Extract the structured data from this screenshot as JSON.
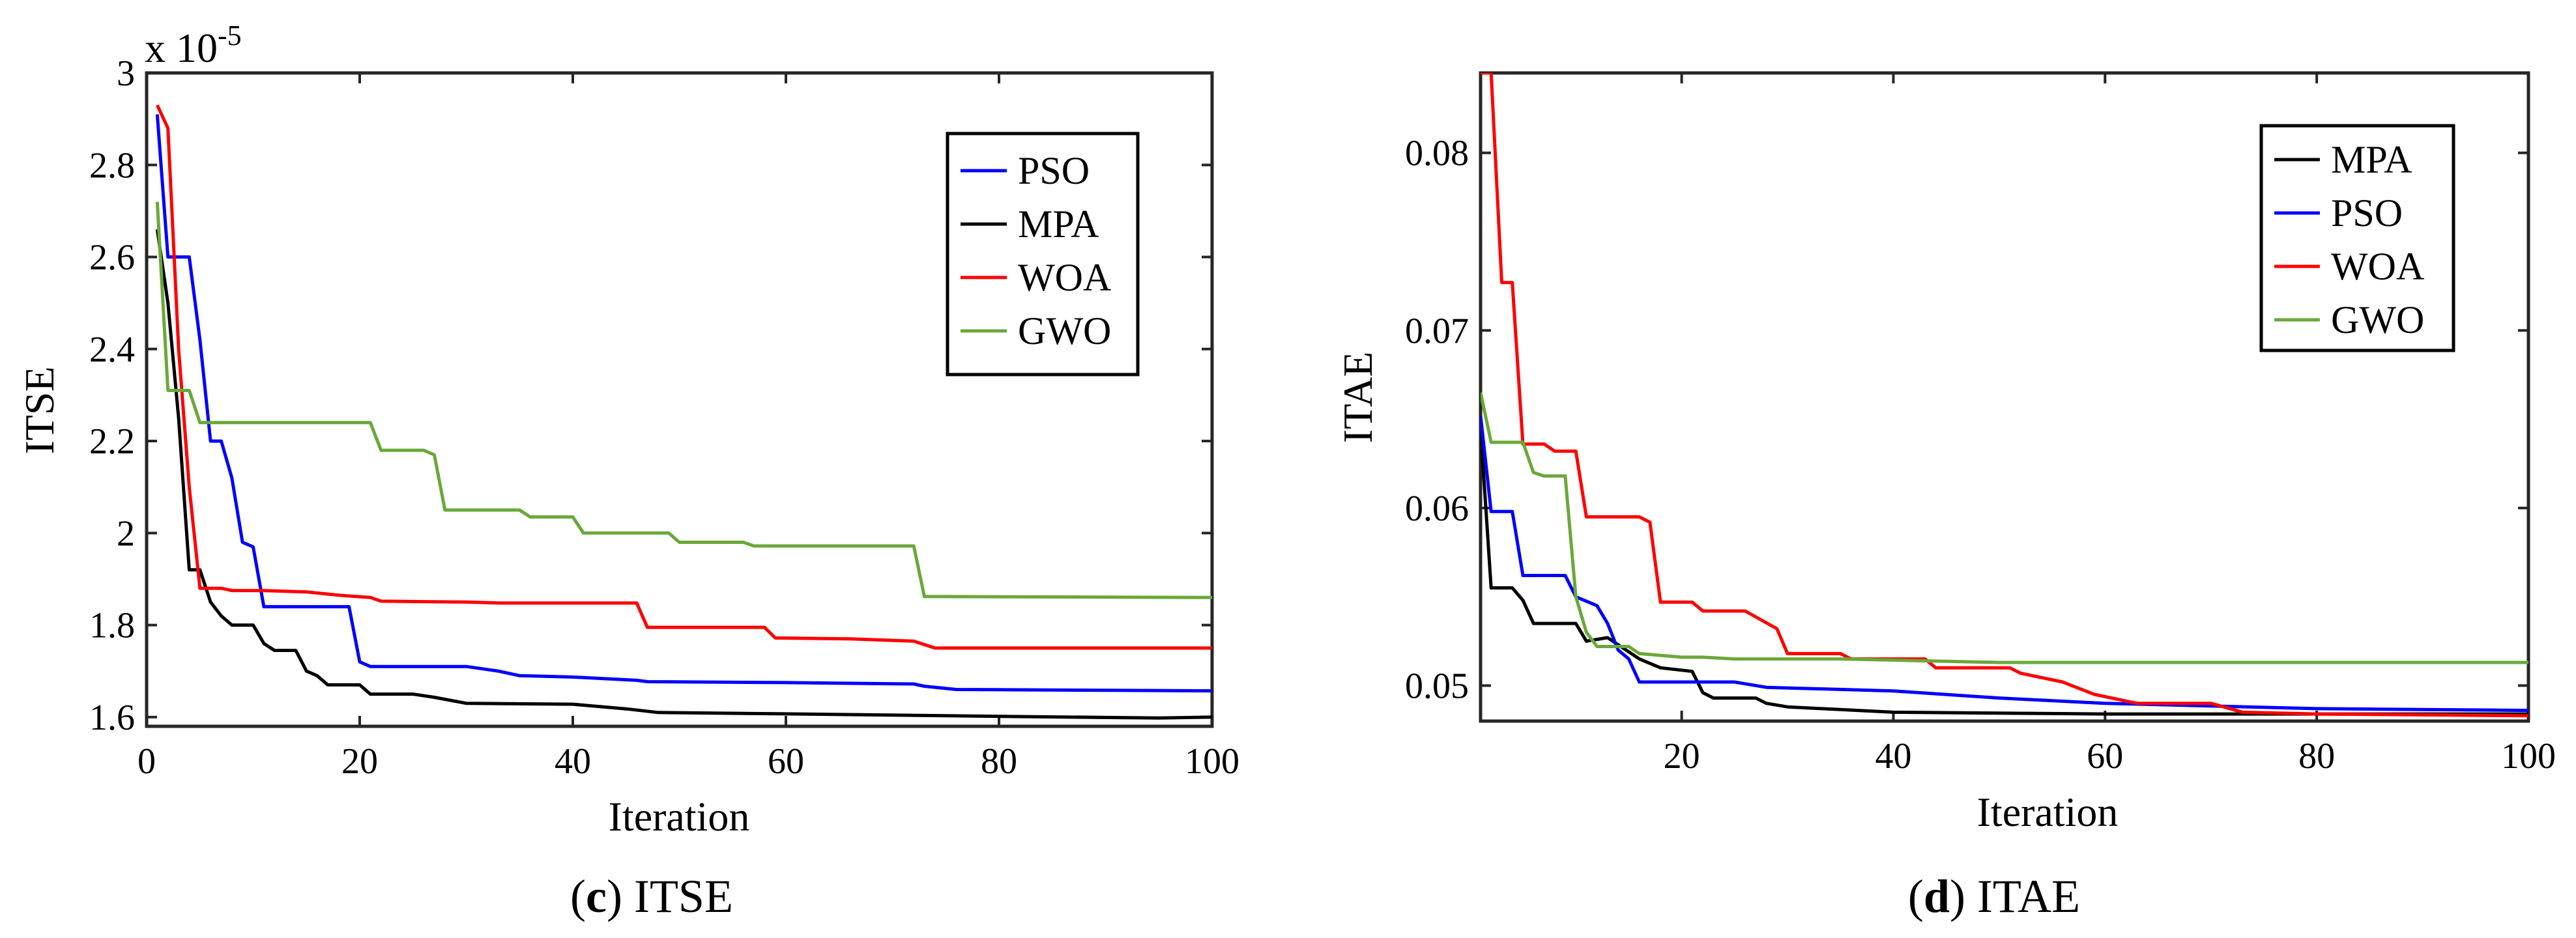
{
  "chart_data": [
    {
      "type": "line",
      "panel": "c",
      "caption_letter": "c",
      "caption_text": " ITSE",
      "xlabel": "Iteration",
      "ylabel": "ITSE",
      "exponent_label": "x 10",
      "exponent_power": "-5",
      "xlim": [
        0,
        100
      ],
      "ylim": [
        1.58,
        3.0
      ],
      "xticks": [
        0,
        20,
        40,
        60,
        80,
        100
      ],
      "xtick_labels": [
        "0",
        "20",
        "40",
        "60",
        "80",
        "100"
      ],
      "yticks": [
        1.6,
        1.8,
        2.0,
        2.2,
        2.4,
        2.6,
        2.8,
        3.0
      ],
      "ytick_labels": [
        "1.6",
        "1.8",
        "2",
        "2.2",
        "2.4",
        "2.6",
        "2.8",
        "3"
      ],
      "legend_position": "top-right",
      "series": [
        {
          "name": "PSO",
          "color": "#0000ff",
          "points": [
            [
              1,
              2.91
            ],
            [
              2,
              2.6
            ],
            [
              4,
              2.6
            ],
            [
              5,
              2.42
            ],
            [
              6,
              2.2
            ],
            [
              7,
              2.2
            ],
            [
              8,
              2.12
            ],
            [
              9,
              1.98
            ],
            [
              10,
              1.97
            ],
            [
              11,
              1.84
            ],
            [
              19,
              1.84
            ],
            [
              20,
              1.72
            ],
            [
              21,
              1.71
            ],
            [
              30,
              1.71
            ],
            [
              33,
              1.7
            ],
            [
              35,
              1.69
            ],
            [
              40,
              1.687
            ],
            [
              46,
              1.68
            ],
            [
              47,
              1.677
            ],
            [
              60,
              1.675
            ],
            [
              72,
              1.672
            ],
            [
              73,
              1.667
            ],
            [
              76,
              1.66
            ],
            [
              100,
              1.657
            ]
          ]
        },
        {
          "name": "MPA",
          "color": "#000000",
          "points": [
            [
              1,
              2.66
            ],
            [
              2,
              2.5
            ],
            [
              3,
              2.25
            ],
            [
              4,
              1.92
            ],
            [
              5,
              1.92
            ],
            [
              6,
              1.85
            ],
            [
              7,
              1.82
            ],
            [
              8,
              1.8
            ],
            [
              10,
              1.8
            ],
            [
              11,
              1.76
            ],
            [
              12,
              1.745
            ],
            [
              14,
              1.745
            ],
            [
              15,
              1.7
            ],
            [
              16,
              1.69
            ],
            [
              17,
              1.67
            ],
            [
              20,
              1.67
            ],
            [
              21,
              1.65
            ],
            [
              25,
              1.65
            ],
            [
              27,
              1.643
            ],
            [
              30,
              1.63
            ],
            [
              40,
              1.628
            ],
            [
              45,
              1.618
            ],
            [
              48,
              1.61
            ],
            [
              60,
              1.607
            ],
            [
              75,
              1.603
            ],
            [
              95,
              1.598
            ],
            [
              100,
              1.6
            ]
          ]
        },
        {
          "name": "WOA",
          "color": "#ff0000",
          "points": [
            [
              1,
              2.93
            ],
            [
              2,
              2.88
            ],
            [
              3,
              2.4
            ],
            [
              4,
              2.1
            ],
            [
              5,
              1.88
            ],
            [
              7,
              1.88
            ],
            [
              8,
              1.875
            ],
            [
              11,
              1.875
            ],
            [
              15,
              1.872
            ],
            [
              18,
              1.865
            ],
            [
              21,
              1.86
            ],
            [
              22,
              1.852
            ],
            [
              30,
              1.85
            ],
            [
              33,
              1.848
            ],
            [
              46,
              1.848
            ],
            [
              47,
              1.795
            ],
            [
              58,
              1.795
            ],
            [
              59,
              1.772
            ],
            [
              66,
              1.77
            ],
            [
              72,
              1.765
            ],
            [
              74,
              1.75
            ],
            [
              100,
              1.75
            ]
          ]
        },
        {
          "name": "GWO",
          "color": "#6aa839",
          "points": [
            [
              1,
              2.72
            ],
            [
              2,
              2.31
            ],
            [
              4,
              2.31
            ],
            [
              5,
              2.24
            ],
            [
              21,
              2.24
            ],
            [
              22,
              2.18
            ],
            [
              26,
              2.18
            ],
            [
              27,
              2.17
            ],
            [
              28,
              2.05
            ],
            [
              35,
              2.05
            ],
            [
              36,
              2.035
            ],
            [
              40,
              2.035
            ],
            [
              41,
              2.0
            ],
            [
              49,
              2.0
            ],
            [
              50,
              1.98
            ],
            [
              56,
              1.98
            ],
            [
              57,
              1.972
            ],
            [
              72,
              1.972
            ],
            [
              73,
              1.862
            ],
            [
              100,
              1.86
            ]
          ]
        }
      ]
    },
    {
      "type": "line",
      "panel": "d",
      "caption_letter": "d",
      "caption_text": " ITAE",
      "xlabel": "Iteration",
      "ylabel": "ITAE",
      "xlim": [
        1,
        100
      ],
      "ylim": [
        0.048,
        0.0845
      ],
      "xticks": [
        20,
        40,
        60,
        80,
        100
      ],
      "xtick_labels": [
        "20",
        "40",
        "60",
        "80",
        "100"
      ],
      "yticks": [
        0.05,
        0.06,
        0.07,
        0.08
      ],
      "ytick_labels": [
        "0.05",
        "0.06",
        "0.07",
        "0.08"
      ],
      "legend_position": "top-right",
      "series": [
        {
          "name": "MPA",
          "color": "#000000",
          "points": [
            [
              1,
              0.0645
            ],
            [
              2,
              0.0555
            ],
            [
              4,
              0.0555
            ],
            [
              5,
              0.0548
            ],
            [
              6,
              0.0535
            ],
            [
              10,
              0.0535
            ],
            [
              11,
              0.0525
            ],
            [
              13,
              0.0527
            ],
            [
              15,
              0.0519
            ],
            [
              16,
              0.0515
            ],
            [
              18,
              0.051
            ],
            [
              21,
              0.0508
            ],
            [
              22,
              0.0496
            ],
            [
              23,
              0.0493
            ],
            [
              27,
              0.0493
            ],
            [
              28,
              0.049
            ],
            [
              30,
              0.0488
            ],
            [
              40,
              0.0485
            ],
            [
              60,
              0.0484
            ],
            [
              100,
              0.0484
            ]
          ]
        },
        {
          "name": "PSO",
          "color": "#0000ff",
          "points": [
            [
              1,
              0.0652
            ],
            [
              2,
              0.0598
            ],
            [
              4,
              0.0598
            ],
            [
              5,
              0.0562
            ],
            [
              9,
              0.0562
            ],
            [
              10,
              0.055
            ],
            [
              12,
              0.0545
            ],
            [
              13,
              0.0535
            ],
            [
              14,
              0.052
            ],
            [
              15,
              0.0515
            ],
            [
              16,
              0.0502
            ],
            [
              25,
              0.0502
            ],
            [
              28,
              0.0499
            ],
            [
              40,
              0.0497
            ],
            [
              50,
              0.0493
            ],
            [
              60,
              0.049
            ],
            [
              80,
              0.0487
            ],
            [
              100,
              0.0486
            ]
          ]
        },
        {
          "name": "WOA",
          "color": "#ff0000",
          "points": [
            [
              1,
              0.0845
            ],
            [
              2,
              0.0845
            ],
            [
              3,
              0.0727
            ],
            [
              4,
              0.0727
            ],
            [
              5,
              0.0636
            ],
            [
              7,
              0.0636
            ],
            [
              8,
              0.0632
            ],
            [
              10,
              0.0632
            ],
            [
              11,
              0.0595
            ],
            [
              16,
              0.0595
            ],
            [
              17,
              0.0592
            ],
            [
              18,
              0.0547
            ],
            [
              21,
              0.0547
            ],
            [
              22,
              0.0542
            ],
            [
              26,
              0.0542
            ],
            [
              29,
              0.0532
            ],
            [
              30,
              0.0518
            ],
            [
              35,
              0.0518
            ],
            [
              36,
              0.0515
            ],
            [
              43,
              0.0515
            ],
            [
              44,
              0.051
            ],
            [
              51,
              0.051
            ],
            [
              52,
              0.0507
            ],
            [
              56,
              0.0502
            ],
            [
              59,
              0.0495
            ],
            [
              63,
              0.049
            ],
            [
              70,
              0.049
            ],
            [
              73,
              0.0485
            ],
            [
              80,
              0.0484
            ],
            [
              100,
              0.0483
            ]
          ]
        },
        {
          "name": "GWO",
          "color": "#6aa839",
          "points": [
            [
              1,
              0.0665
            ],
            [
              2,
              0.0637
            ],
            [
              5,
              0.0637
            ],
            [
              6,
              0.062
            ],
            [
              7,
              0.0618
            ],
            [
              9,
              0.0618
            ],
            [
              10,
              0.055
            ],
            [
              11,
              0.053
            ],
            [
              12,
              0.0522
            ],
            [
              15,
              0.0522
            ],
            [
              16,
              0.0518
            ],
            [
              20,
              0.0516
            ],
            [
              22,
              0.0516
            ],
            [
              25,
              0.0515
            ],
            [
              35,
              0.0515
            ],
            [
              50,
              0.0513
            ],
            [
              70,
              0.0513
            ],
            [
              100,
              0.0513
            ]
          ]
        }
      ]
    }
  ]
}
